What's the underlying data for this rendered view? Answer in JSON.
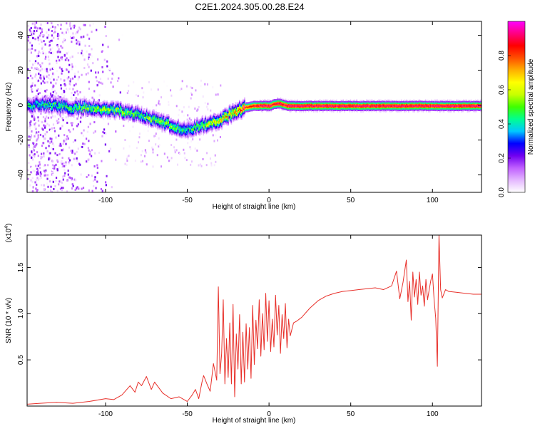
{
  "title": "C2E1.2024.305.00.28.E24",
  "chart_data": [
    {
      "type": "heatmap",
      "xlabel": "Height of straight line (km)",
      "ylabel": "Frequency (Hz)",
      "xlim": [
        -148,
        130
      ],
      "ylim": [
        -50,
        48
      ],
      "xticks": [
        -100,
        -50,
        0,
        50,
        100
      ],
      "yticks": [
        -40,
        -20,
        0,
        20,
        40
      ],
      "colorbar": {
        "label": "Normalized spectral amplitude",
        "range": [
          0.0,
          1.0
        ],
        "ticks": [
          "0.0",
          "0.2",
          "0.4",
          "0.6",
          "0.8"
        ],
        "colors": [
          "#ffffff",
          "#e4b8ff",
          "#c060ff",
          "#7000f0",
          "#0000ff",
          "#00c8ff",
          "#00ff90",
          "#40ff00",
          "#c8ff00",
          "#ffff00",
          "#ffb000",
          "#ff5000",
          "#ff0000",
          "#ff0080",
          "#ff00ff"
        ]
      },
      "ridge": {
        "x": [
          -148,
          -140,
          -130,
          -120,
          -110,
          -100,
          -90,
          -80,
          -70,
          -60,
          -55,
          -50,
          -45,
          -40,
          -35,
          -30,
          -25,
          -20,
          -15,
          -10,
          -5,
          0,
          3,
          6,
          9,
          12,
          20,
          30,
          40,
          50,
          60,
          70,
          80,
          90,
          100,
          110,
          120,
          130
        ],
        "frequency": [
          0,
          1,
          0,
          -1,
          -1,
          -2,
          -3,
          -5,
          -8,
          -11,
          -13,
          -14,
          -12,
          -11,
          -10,
          -8,
          -5,
          -3,
          -1,
          0,
          0,
          0,
          1,
          1.5,
          0.5,
          0,
          0,
          0,
          0,
          0,
          0,
          0,
          0,
          0,
          0,
          0,
          0,
          0
        ],
        "amplitude": [
          0.4,
          0.4,
          0.45,
          0.45,
          0.5,
          0.5,
          0.5,
          0.45,
          0.5,
          0.5,
          0.45,
          0.4,
          0.45,
          0.5,
          0.55,
          0.6,
          0.65,
          0.7,
          0.85,
          0.9,
          0.95,
          0.95,
          0.9,
          0.95,
          0.95,
          0.95,
          0.95,
          0.95,
          0.95,
          0.95,
          0.95,
          0.95,
          0.95,
          0.95,
          0.95,
          0.95,
          0.95,
          0.95
        ]
      }
    },
    {
      "type": "line",
      "xlabel": "Height of straight line (km)",
      "ylabel": "SNR (10 * v/v)",
      "y_multiplier": "(x10",
      "y_multiplier_exp": "4",
      "xlim": [
        -148,
        130
      ],
      "ylim": [
        0,
        18500
      ],
      "xticks": [
        -100,
        -50,
        0,
        50,
        100
      ],
      "yticks": [
        5000,
        10000,
        15000
      ],
      "ytick_labels": [
        "0.5",
        "1.0",
        "1.5"
      ],
      "series": [
        {
          "color": "#e8302a",
          "x": [
            -148,
            -140,
            -130,
            -120,
            -110,
            -100,
            -95,
            -90,
            -85,
            -82,
            -80,
            -78,
            -75,
            -72,
            -70,
            -65,
            -60,
            -55,
            -50,
            -47,
            -45,
            -43,
            -41,
            -40,
            -38,
            -36,
            -34,
            -32,
            -31,
            -30,
            -29,
            -28,
            -27,
            -26,
            -25,
            -24,
            -23,
            -22,
            -21,
            -20,
            -19,
            -18,
            -17,
            -16,
            -15,
            -14,
            -13,
            -12,
            -11,
            -10,
            -9,
            -8,
            -7,
            -6,
            -5,
            -4,
            -3,
            -2,
            -1,
            0,
            1,
            2,
            3,
            4,
            5,
            6,
            7,
            8,
            9,
            10,
            11,
            12,
            13,
            15,
            17,
            20,
            25,
            30,
            35,
            40,
            45,
            50,
            55,
            60,
            65,
            70,
            75,
            78,
            80,
            82,
            84,
            85,
            86,
            87,
            88,
            89,
            90,
            91,
            92,
            93,
            94,
            95,
            96,
            97,
            98,
            99,
            100,
            101,
            102,
            103,
            104,
            105,
            106,
            108,
            110,
            115,
            120,
            125,
            130
          ],
          "y": [
            200,
            300,
            400,
            300,
            500,
            800,
            700,
            1200,
            2200,
            1500,
            2600,
            2200,
            3200,
            1800,
            2600,
            1400,
            800,
            1000,
            500,
            1200,
            1800,
            800,
            2600,
            3300,
            2400,
            1600,
            4600,
            2800,
            12900,
            3500,
            5600,
            11500,
            2400,
            7300,
            3100,
            9000,
            2400,
            11000,
            1000,
            7800,
            4000,
            9900,
            2400,
            8000,
            2600,
            8900,
            4000,
            8500,
            3000,
            10900,
            4500,
            9300,
            6200,
            11500,
            5400,
            10000,
            6100,
            12200,
            7000,
            11400,
            5900,
            9400,
            6400,
            12000,
            7700,
            10900,
            5700,
            9900,
            7300,
            11100,
            6300,
            9400,
            7600,
            9000,
            9200,
            9600,
            10600,
            11400,
            11900,
            12200,
            12400,
            12500,
            12600,
            12700,
            12800,
            12600,
            13000,
            14600,
            11600,
            13400,
            15800,
            11300,
            13500,
            9300,
            14500,
            11800,
            13700,
            11000,
            14500,
            12000,
            13000,
            10800,
            13700,
            11500,
            12600,
            13600,
            14300,
            11500,
            9500,
            4300,
            18500,
            12600,
            11700,
            12600,
            12400,
            12300,
            12200,
            12100,
            12100
          ]
        }
      ]
    }
  ]
}
